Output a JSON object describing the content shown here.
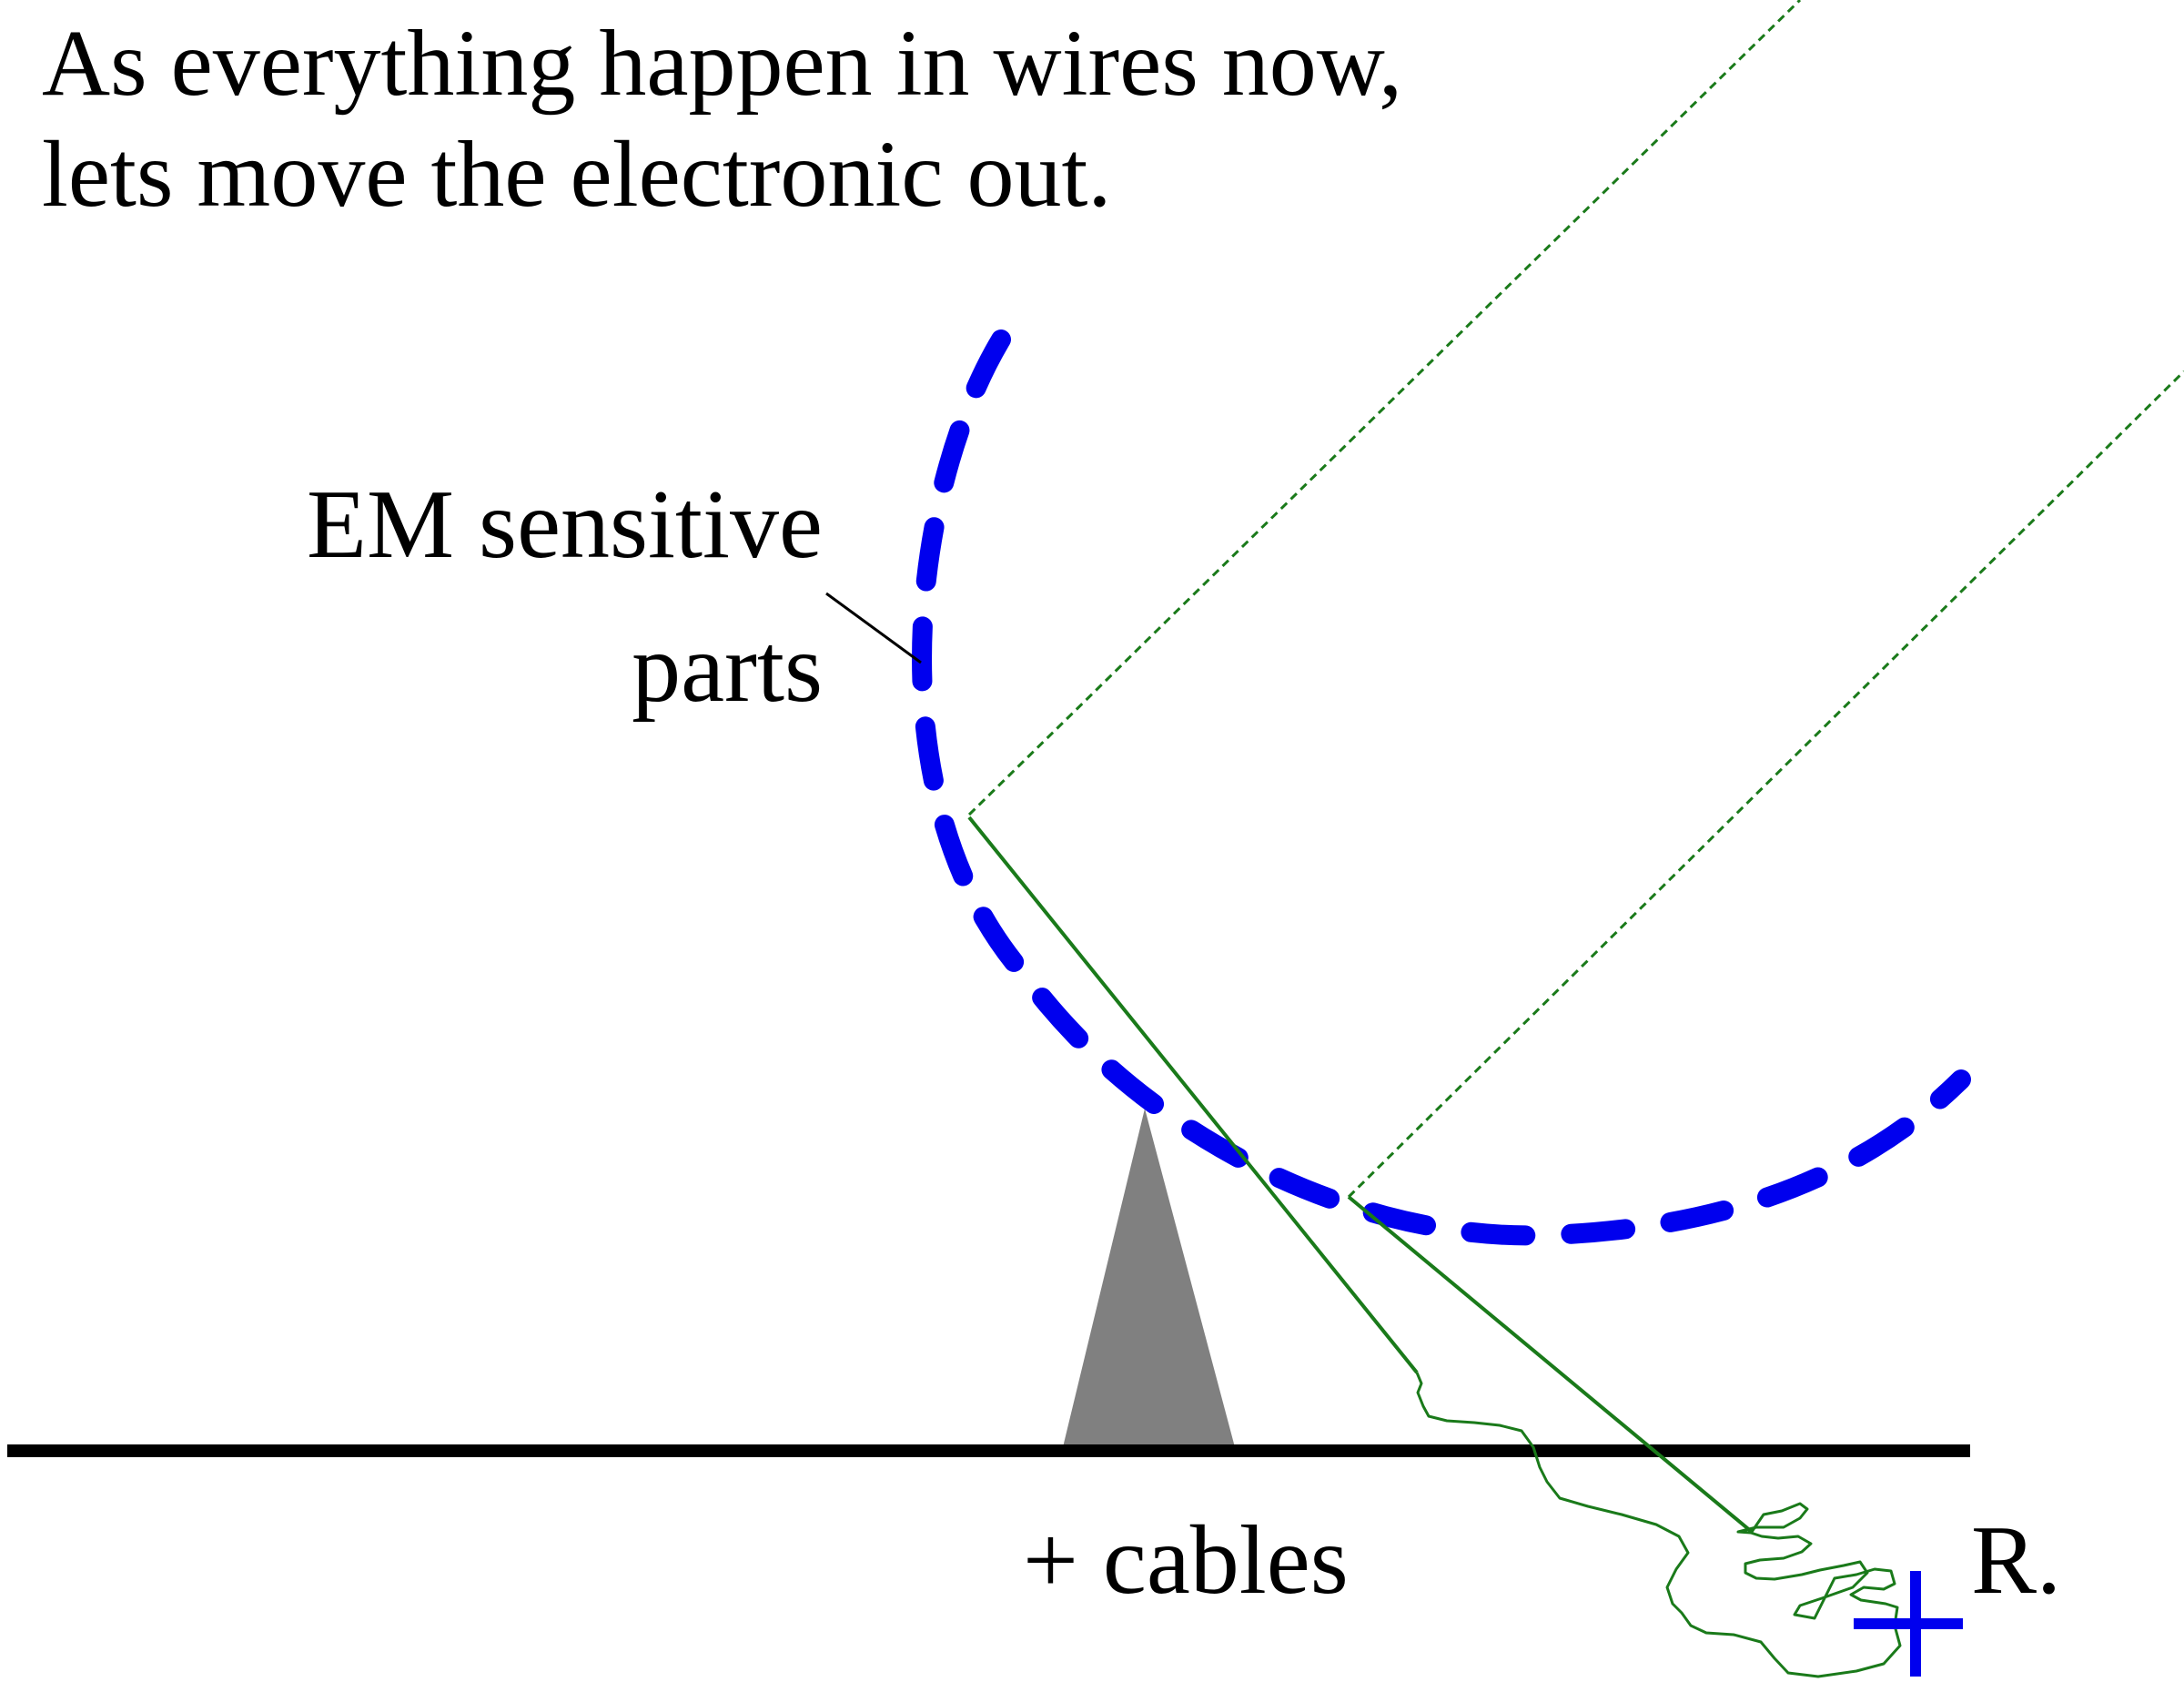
{
  "title": {
    "line1": "As everything happen in wires now,",
    "line2": "lets move the electronic out."
  },
  "labels": {
    "em_sensitive_line1": "EM sensitive",
    "em_sensitive_line2": "parts",
    "cables": "+ cables",
    "receiver": "R."
  },
  "colors": {
    "dish": "#0000ee",
    "signal": "#1a7a1a",
    "ground": "#000000",
    "mount": "#808080",
    "receiver_marker": "#0000ee"
  },
  "icons": {
    "receiver_marker": "plus-cross-icon"
  }
}
